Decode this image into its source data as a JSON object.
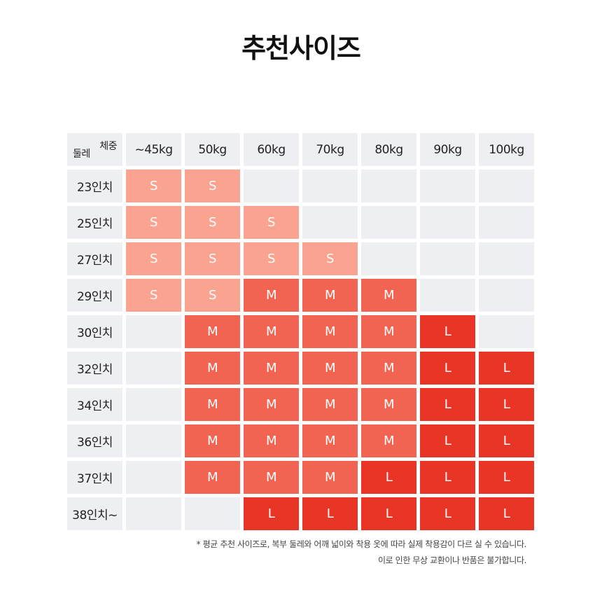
{
  "title": "추천사이즈",
  "table": {
    "corner_weight": "체중",
    "corner_girth": "둘레",
    "columns": [
      "~45kg",
      "50kg",
      "60kg",
      "70kg",
      "80kg",
      "90kg",
      "100kg"
    ],
    "rows": [
      {
        "label": "23인치",
        "sizes": [
          "S",
          "S",
          "",
          "",
          "",
          "",
          ""
        ]
      },
      {
        "label": "25인치",
        "sizes": [
          "S",
          "S",
          "S",
          "",
          "",
          "",
          ""
        ]
      },
      {
        "label": "27인치",
        "sizes": [
          "S",
          "S",
          "S",
          "S",
          "",
          "",
          ""
        ]
      },
      {
        "label": "29인치",
        "sizes": [
          "S",
          "S",
          "M",
          "M",
          "M",
          "",
          ""
        ]
      },
      {
        "label": "30인치",
        "sizes": [
          "",
          "M",
          "M",
          "M",
          "M",
          "L",
          ""
        ]
      },
      {
        "label": "32인치",
        "sizes": [
          "",
          "M",
          "M",
          "M",
          "M",
          "L",
          "L"
        ]
      },
      {
        "label": "34인치",
        "sizes": [
          "",
          "M",
          "M",
          "M",
          "M",
          "L",
          "L"
        ]
      },
      {
        "label": "36인치",
        "sizes": [
          "",
          "M",
          "M",
          "M",
          "M",
          "L",
          "L"
        ]
      },
      {
        "label": "37인치",
        "sizes": [
          "",
          "M",
          "M",
          "M",
          "L",
          "L",
          "L"
        ]
      },
      {
        "label": "38인치~",
        "sizes": [
          "",
          "",
          "L",
          "L",
          "L",
          "L",
          "L"
        ]
      }
    ]
  },
  "colors": {
    "S": "#fba391",
    "M": "#f26452",
    "L": "#e83525",
    "empty": "#eeeff3"
  },
  "notes": [
    "* 평균 추천 사이즈로, 복부 둘레와 어깨 넓이와 착용 옷에 따라 실제 착용감이 다르 실 수 있습니다.",
    "이로 인한 무상 교환이나 반품은 불가합니다."
  ]
}
